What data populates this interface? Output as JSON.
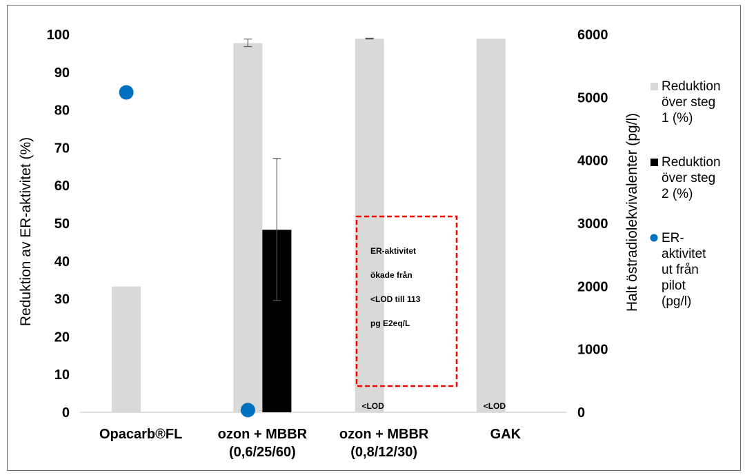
{
  "chart_data": {
    "type": "bar",
    "categories": [
      "Opacarb®FL",
      "ozon + MBBR\n(0,6/25/60)",
      "ozon + MBBR\n(0,8/12/30)",
      "GAK"
    ],
    "ylabel": "Reduktion av ER-aktivitet (%)",
    "y2label": "Halt östradiolekvivalenter  (pg/l)",
    "ylim": [
      0,
      100
    ],
    "y2lim": [
      0,
      6000
    ],
    "yticks": [
      0,
      10,
      20,
      30,
      40,
      50,
      60,
      70,
      80,
      90,
      100
    ],
    "y2ticks": [
      0,
      1000,
      2000,
      3000,
      4000,
      5000,
      6000
    ],
    "grid": false,
    "legend_position": "right",
    "series": [
      {
        "name": "Reduktion över steg 1 (%)",
        "kind": "bar",
        "axis": "left",
        "color": "#d9d9d9",
        "values": [
          33.3,
          97.7,
          98.9,
          98.9
        ],
        "error_low": [
          null,
          96.8,
          98.8,
          null
        ],
        "error_high": [
          null,
          98.8,
          99.0,
          null
        ]
      },
      {
        "name": "Reduktion över steg 2 (%)",
        "kind": "bar",
        "axis": "left",
        "color": "#000000",
        "values": [
          null,
          48.3,
          null,
          null
        ],
        "error_low": [
          null,
          29.6,
          null,
          null
        ],
        "error_high": [
          null,
          67.2,
          null,
          null
        ]
      },
      {
        "name": "ER-aktivitet ut från pilot (pg/l)",
        "kind": "scatter",
        "axis": "right",
        "color": "#0070c0",
        "values": [
          5080,
          35,
          null,
          null
        ]
      }
    ],
    "bar_annotations": [
      {
        "category_index": 2,
        "text": "<LOD"
      },
      {
        "category_index": 3,
        "text": "<LOD"
      }
    ],
    "annotation_box": {
      "lines": [
        "ER-aktivitet",
        "ökade från",
        "<LOD till 113",
        "pg E2eq/L"
      ],
      "border_color": "#ff0000"
    }
  }
}
